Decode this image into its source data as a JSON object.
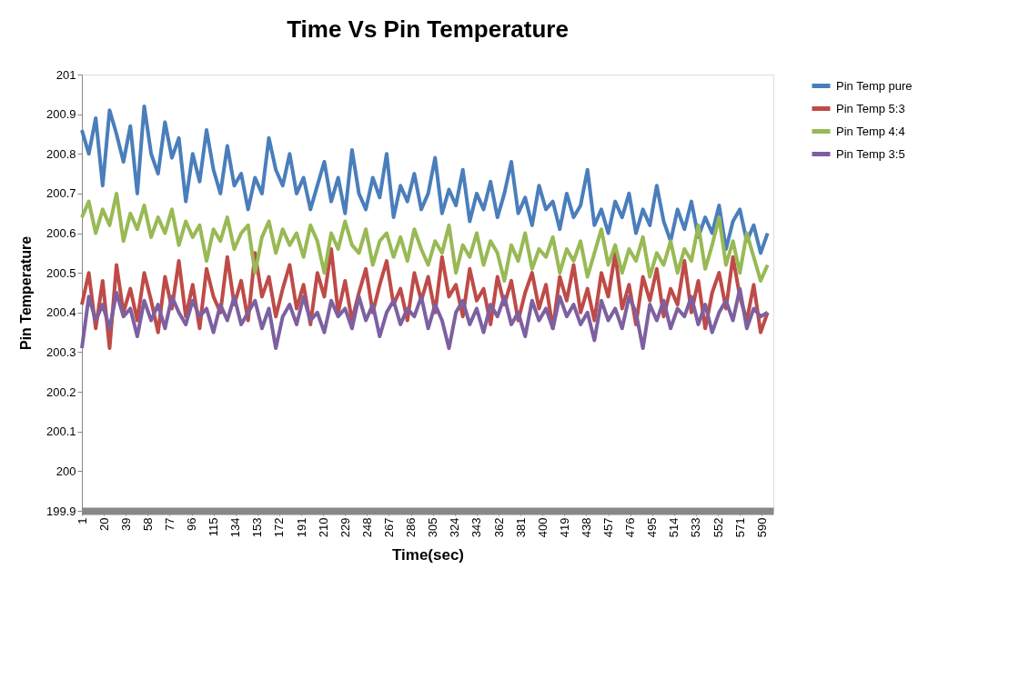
{
  "chart_data": {
    "type": "line",
    "title": "Time Vs Pin Temperature",
    "xlabel": "Time(sec)",
    "ylabel": "Pin Temperature",
    "x": [
      1,
      7,
      13,
      19,
      25,
      31,
      37,
      43,
      49,
      55,
      61,
      67,
      73,
      79,
      85,
      91,
      97,
      103,
      109,
      115,
      121,
      127,
      133,
      139,
      145,
      151,
      157,
      163,
      169,
      175,
      181,
      187,
      193,
      199,
      205,
      211,
      217,
      223,
      229,
      235,
      241,
      247,
      253,
      259,
      265,
      271,
      277,
      283,
      289,
      295,
      301,
      307,
      313,
      319,
      325,
      331,
      337,
      343,
      349,
      355,
      361,
      367,
      373,
      379,
      385,
      391,
      397,
      403,
      409,
      415,
      421,
      427,
      433,
      439,
      445,
      451,
      457,
      463,
      469,
      475,
      481,
      487,
      493,
      499,
      505,
      511,
      517,
      523,
      529,
      535,
      541,
      547,
      553,
      559,
      565,
      571,
      577,
      583,
      589,
      595
    ],
    "series": [
      {
        "name": "Pin Temp pure",
        "color": "#4a7ebb",
        "values": [
          200.86,
          200.8,
          200.89,
          200.72,
          200.91,
          200.85,
          200.78,
          200.87,
          200.7,
          200.92,
          200.8,
          200.75,
          200.88,
          200.79,
          200.84,
          200.68,
          200.8,
          200.73,
          200.86,
          200.76,
          200.7,
          200.82,
          200.72,
          200.75,
          200.66,
          200.74,
          200.7,
          200.84,
          200.76,
          200.72,
          200.8,
          200.7,
          200.74,
          200.66,
          200.72,
          200.78,
          200.68,
          200.74,
          200.65,
          200.81,
          200.7,
          200.66,
          200.74,
          200.69,
          200.8,
          200.64,
          200.72,
          200.68,
          200.75,
          200.66,
          200.7,
          200.79,
          200.65,
          200.71,
          200.67,
          200.76,
          200.63,
          200.7,
          200.66,
          200.73,
          200.64,
          200.7,
          200.78,
          200.65,
          200.69,
          200.62,
          200.72,
          200.66,
          200.68,
          200.61,
          200.7,
          200.64,
          200.67,
          200.76,
          200.62,
          200.66,
          200.6,
          200.68,
          200.64,
          200.7,
          200.6,
          200.66,
          200.62,
          200.72,
          200.63,
          200.58,
          200.66,
          200.61,
          200.68,
          200.59,
          200.64,
          200.6,
          200.67,
          200.56,
          200.63,
          200.66,
          200.58,
          200.62,
          200.55,
          200.6
        ]
      },
      {
        "name": "Pin Temp 5:3",
        "color": "#be4b48",
        "values": [
          200.42,
          200.5,
          200.36,
          200.48,
          200.31,
          200.52,
          200.4,
          200.46,
          200.38,
          200.5,
          200.43,
          200.35,
          200.49,
          200.41,
          200.53,
          200.39,
          200.47,
          200.36,
          200.51,
          200.44,
          200.4,
          200.54,
          200.42,
          200.48,
          200.38,
          200.55,
          200.44,
          200.49,
          200.39,
          200.46,
          200.52,
          200.41,
          200.47,
          200.37,
          200.5,
          200.44,
          200.56,
          200.4,
          200.48,
          200.38,
          200.45,
          200.51,
          200.4,
          200.47,
          200.53,
          200.42,
          200.46,
          200.38,
          200.5,
          200.43,
          200.49,
          200.4,
          200.54,
          200.44,
          200.47,
          200.39,
          200.51,
          200.43,
          200.46,
          200.37,
          200.49,
          200.42,
          200.48,
          200.38,
          200.45,
          200.5,
          200.41,
          200.47,
          200.36,
          200.49,
          200.43,
          200.52,
          200.4,
          200.46,
          200.38,
          200.5,
          200.44,
          200.55,
          200.41,
          200.47,
          200.37,
          200.49,
          200.43,
          200.51,
          200.39,
          200.46,
          200.42,
          200.53,
          200.4,
          200.48,
          200.36,
          200.45,
          200.5,
          200.41,
          200.54,
          200.44,
          200.38,
          200.47,
          200.35,
          200.4
        ]
      },
      {
        "name": "Pin Temp 4:4",
        "color": "#98b954",
        "values": [
          200.64,
          200.68,
          200.6,
          200.66,
          200.62,
          200.7,
          200.58,
          200.65,
          200.61,
          200.67,
          200.59,
          200.64,
          200.6,
          200.66,
          200.57,
          200.63,
          200.59,
          200.62,
          200.53,
          200.61,
          200.58,
          200.64,
          200.56,
          200.6,
          200.62,
          200.5,
          200.59,
          200.63,
          200.55,
          200.61,
          200.57,
          200.6,
          200.54,
          200.62,
          200.58,
          200.5,
          200.6,
          200.56,
          200.63,
          200.57,
          200.55,
          200.61,
          200.52,
          200.58,
          200.6,
          200.54,
          200.59,
          200.53,
          200.61,
          200.56,
          200.52,
          200.58,
          200.55,
          200.62,
          200.5,
          200.57,
          200.54,
          200.6,
          200.52,
          200.58,
          200.55,
          200.48,
          200.57,
          200.53,
          200.6,
          200.51,
          200.56,
          200.54,
          200.59,
          200.5,
          200.56,
          200.53,
          200.58,
          200.49,
          200.55,
          200.61,
          200.52,
          200.57,
          200.5,
          200.56,
          200.53,
          200.59,
          200.49,
          200.55,
          200.52,
          200.58,
          200.5,
          200.56,
          200.53,
          200.62,
          200.51,
          200.57,
          200.64,
          200.52,
          200.58,
          200.5,
          200.6,
          200.54,
          200.48,
          200.52
        ]
      },
      {
        "name": "Pin Temp 3:5",
        "color": "#7d60a0",
        "values": [
          200.31,
          200.44,
          200.38,
          200.42,
          200.36,
          200.45,
          200.39,
          200.41,
          200.34,
          200.43,
          200.38,
          200.42,
          200.36,
          200.44,
          200.4,
          200.37,
          200.43,
          200.39,
          200.41,
          200.35,
          200.42,
          200.38,
          200.44,
          200.37,
          200.4,
          200.43,
          200.36,
          200.41,
          200.31,
          200.39,
          200.42,
          200.37,
          200.44,
          200.38,
          200.4,
          200.35,
          200.43,
          200.39,
          200.41,
          200.36,
          200.44,
          200.38,
          200.42,
          200.34,
          200.4,
          200.43,
          200.37,
          200.41,
          200.39,
          200.44,
          200.36,
          200.42,
          200.38,
          200.31,
          200.4,
          200.43,
          200.37,
          200.41,
          200.35,
          200.42,
          200.39,
          200.44,
          200.37,
          200.4,
          200.34,
          200.43,
          200.38,
          200.41,
          200.36,
          200.44,
          200.39,
          200.42,
          200.37,
          200.4,
          200.33,
          200.43,
          200.38,
          200.41,
          200.36,
          200.44,
          200.4,
          200.31,
          200.42,
          200.38,
          200.43,
          200.36,
          200.41,
          200.39,
          200.44,
          200.37,
          200.42,
          200.35,
          200.4,
          200.43,
          200.38,
          200.46,
          200.36,
          200.41,
          200.39,
          200.4
        ]
      }
    ],
    "xlim": [
      1,
      600
    ],
    "xticks": [
      1,
      20,
      39,
      58,
      77,
      96,
      115,
      134,
      153,
      172,
      191,
      210,
      229,
      248,
      267,
      286,
      305,
      324,
      343,
      362,
      381,
      400,
      419,
      438,
      457,
      476,
      495,
      514,
      533,
      552,
      571,
      590
    ],
    "ylim": [
      199.9,
      201
    ],
    "yticks": [
      199.9,
      200,
      200.1,
      200.2,
      200.3,
      200.4,
      200.5,
      200.6,
      200.7,
      200.8,
      200.9,
      201
    ],
    "grid": false,
    "legend": "right",
    "marker": "none",
    "line_style": "solid"
  }
}
